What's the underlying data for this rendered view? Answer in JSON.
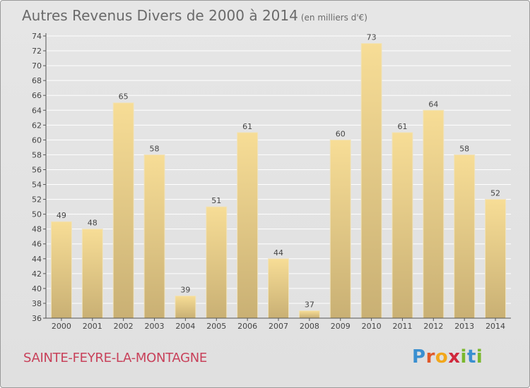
{
  "header": {
    "title": "Autres Revenus Divers de 2000 à 2014",
    "subtitle": "(en milliers d'€)"
  },
  "footer": {
    "commune": "SAINTE-FEYRE-LA-MONTAGNE",
    "logo_letters": [
      "P",
      "r",
      "o",
      "x",
      "i",
      "t",
      "i"
    ],
    "logo_colors": [
      "#3a8fd0",
      "#e0592a",
      "#f2a71b",
      "#d0283c",
      "#7ab82e",
      "#3a8fd0",
      "#7ab82e"
    ]
  },
  "colors": {
    "bar_top": "#f7dd96",
    "bar_bottom": "#c9b074",
    "grid": "#ffffff",
    "axis": "#555555"
  },
  "chart_data": {
    "type": "bar",
    "categories": [
      "2000",
      "2001",
      "2002",
      "2003",
      "2004",
      "2005",
      "2006",
      "2007",
      "2008",
      "2009",
      "2010",
      "2011",
      "2012",
      "2013",
      "2014"
    ],
    "values": [
      49,
      48,
      65,
      58,
      39,
      51,
      61,
      44,
      37,
      60,
      73,
      61,
      64,
      58,
      52
    ],
    "title": "Autres Revenus Divers de 2000 à 2014",
    "ylim": [
      36,
      74
    ],
    "yticks": [
      36,
      38,
      40,
      42,
      44,
      46,
      48,
      50,
      52,
      54,
      56,
      58,
      60,
      62,
      64,
      66,
      68,
      70,
      72,
      74
    ],
    "grid": true
  }
}
